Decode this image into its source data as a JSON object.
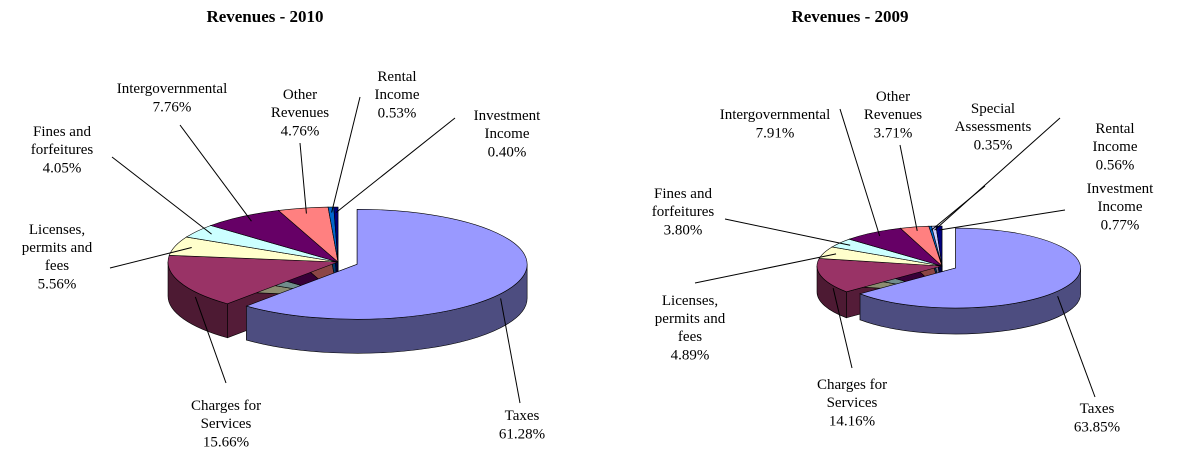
{
  "chart_data": [
    {
      "type": "pie",
      "title": "Revenues - 2010",
      "categories": [
        "Taxes",
        "Charges for Services",
        "Licenses, permits and fees",
        "Fines and forfeitures",
        "Intergovernmental",
        "Other Revenues",
        "Rental Income",
        "Investment Income"
      ],
      "values": [
        61.28,
        15.66,
        5.56,
        4.05,
        7.76,
        4.76,
        0.53,
        0.4
      ],
      "value_labels": [
        "61.28%",
        "15.66%",
        "5.56%",
        "4.05%",
        "7.76%",
        "4.76%",
        "0.53%",
        "0.40%"
      ],
      "colors": [
        "#9999ff",
        "#993366",
        "#ffffcc",
        "#ccffff",
        "#660066",
        "#ff8080",
        "#0066cc",
        "#000080"
      ]
    },
    {
      "type": "pie",
      "title": "Revenues - 2009",
      "categories": [
        "Taxes",
        "Charges for Services",
        "Licenses, permits and fees",
        "Fines and forfeitures",
        "Intergovernmental",
        "Other Revenues",
        "Special Assessments",
        "Rental Income",
        "Investment Income"
      ],
      "values": [
        63.85,
        14.16,
        4.89,
        3.8,
        7.91,
        3.71,
        0.35,
        0.56,
        0.77
      ],
      "value_labels": [
        "63.85%",
        "14.16%",
        "4.89%",
        "3.80%",
        "7.91%",
        "3.71%",
        "0.35%",
        "0.56%",
        "0.77%"
      ],
      "colors": [
        "#9999ff",
        "#993366",
        "#ffffcc",
        "#ccffff",
        "#660066",
        "#ff8080",
        "#0066cc",
        "#ccccff",
        "#000080"
      ]
    }
  ]
}
